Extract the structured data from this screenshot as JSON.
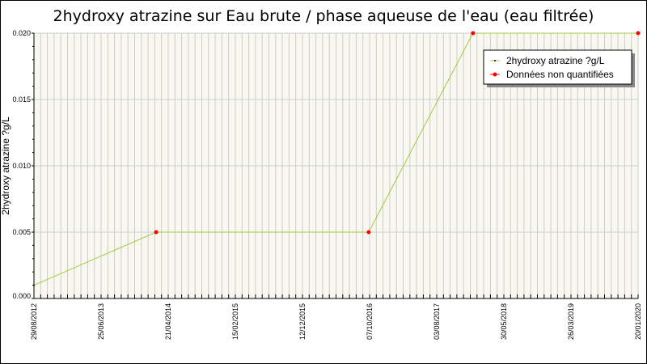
{
  "chart_data": {
    "type": "line",
    "title": "2hydroxy atrazine sur Eau brute / phase aqueuse de l'eau (eau filtrée)",
    "xlabel": "",
    "ylabel": "2hydroxy atrazine ?g/L",
    "x_type": "date",
    "xlim": [
      "2012-08-29",
      "2020-01-20"
    ],
    "ylim": [
      0,
      0.02
    ],
    "x_ticks": [
      "29/08/2012",
      "25/06/2013",
      "21/04/2014",
      "15/02/2015",
      "12/12/2015",
      "07/10/2016",
      "03/08/2017",
      "30/05/2018",
      "26/03/2019",
      "20/01/2020"
    ],
    "y_ticks": [
      "0.000",
      "0.005",
      "0.010",
      "0.015",
      "0.020"
    ],
    "grid": true,
    "legend_position": "top-right",
    "series": [
      {
        "name": "2hydroxy atrazine ?g/L",
        "color": "#a8c83c",
        "marker_color": "#000000",
        "x": [
          "2012-08-29",
          "2014-02-26",
          "2016-10-03",
          "2018-01-12",
          "2020-01-20"
        ],
        "y": [
          0.001,
          0.005,
          0.005,
          0.02,
          0.02
        ]
      },
      {
        "name": "Données non quantifiées",
        "color": "#ff0000",
        "marker_color": "#ff0000",
        "x": [
          "2014-02-26",
          "2016-10-03",
          "2018-01-12",
          "2020-01-20"
        ],
        "y": [
          0.005,
          0.005,
          0.02,
          0.02
        ]
      }
    ],
    "colors": {
      "plot_bg": "#f8f8f0",
      "grid": "#cccccc"
    }
  }
}
